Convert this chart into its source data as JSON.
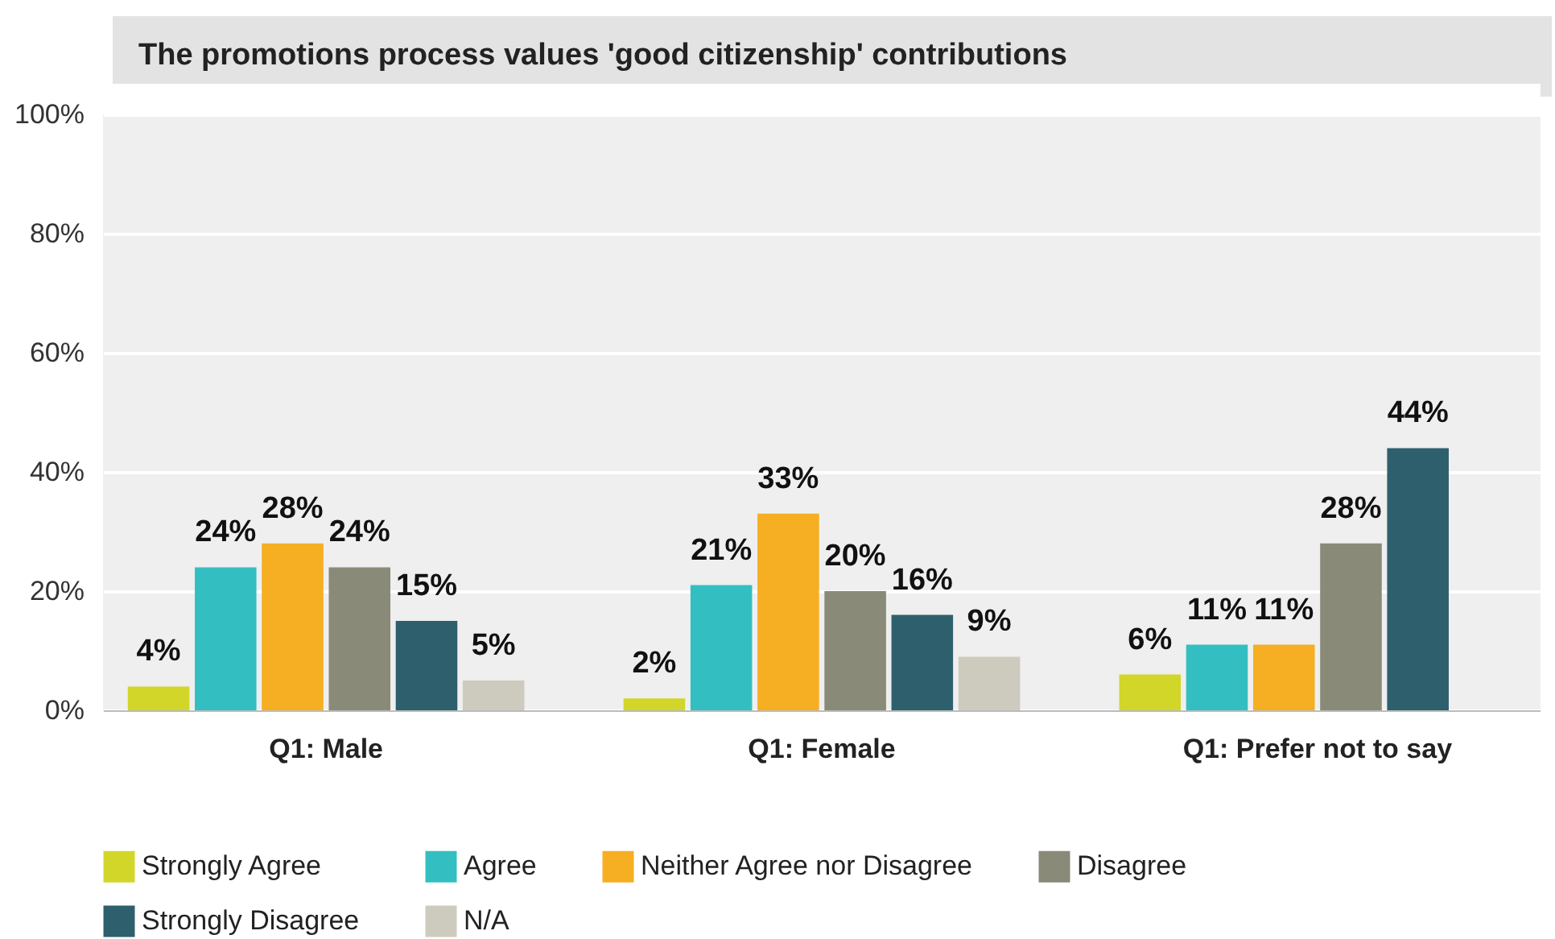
{
  "chart_data": {
    "type": "bar",
    "title": "The promotions process values 'good citizenship' contributions",
    "categories": [
      "Q1: Male",
      "Q1: Female",
      "Q1: Prefer not to say"
    ],
    "series": [
      {
        "name": "Strongly Agree",
        "color": "#d2d628",
        "values": [
          4,
          2,
          6
        ],
        "value_labels": [
          "4%",
          "2%",
          "6%"
        ]
      },
      {
        "name": "Agree",
        "color": "#33bfc1",
        "values": [
          24,
          21,
          11
        ],
        "value_labels": [
          "24%",
          "21%",
          "11%"
        ]
      },
      {
        "name": "Neither Agree nor Disagree",
        "color": "#f6ae22",
        "values": [
          28,
          33,
          11
        ],
        "value_labels": [
          "28%",
          "33%",
          "11%"
        ]
      },
      {
        "name": "Disagree",
        "color": "#8a8a78",
        "values": [
          24,
          20,
          28
        ],
        "value_labels": [
          "24%",
          "20%",
          "28%"
        ]
      },
      {
        "name": "Strongly Disagree",
        "color": "#2e5f6d",
        "values": [
          15,
          16,
          44
        ],
        "value_labels": [
          "15%",
          "16%",
          "44%"
        ]
      },
      {
        "name": "N/A",
        "color": "#cdcbbd",
        "values": [
          5,
          9,
          null
        ],
        "value_labels": [
          "5%",
          "9%",
          null
        ]
      }
    ],
    "ylim": [
      0,
      100
    ],
    "yticks": [
      {
        "value": 0,
        "label": "0%"
      },
      {
        "value": 20,
        "label": "20%"
      },
      {
        "value": 40,
        "label": "40%"
      },
      {
        "value": 60,
        "label": "60%"
      },
      {
        "value": 80,
        "label": "80%"
      },
      {
        "value": 100,
        "label": "100%"
      }
    ],
    "grid": "y",
    "legend": "bottom"
  }
}
